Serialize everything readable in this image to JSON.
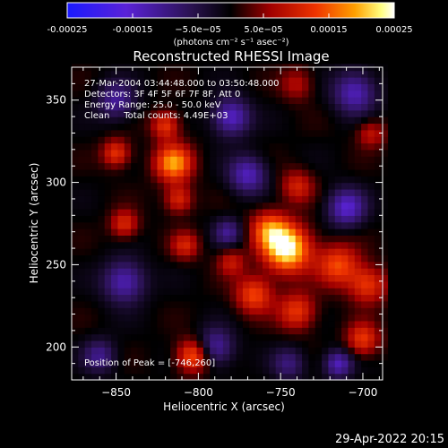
{
  "footer_date": "29-Apr-2022 20:15",
  "colors": {
    "background": "#000000",
    "foreground": "#ffffff",
    "colormap": "blue-purple-black-red-orange-yellow-white"
  },
  "chart_data": {
    "type": "heatmap",
    "title": "Reconstructed RHESSI Image",
    "xlabel": "Heliocentric X (arcsec)",
    "ylabel": "Heliocentric Y (arcsec)",
    "xlim": [
      -877,
      -688
    ],
    "ylim": [
      180,
      370
    ],
    "xticks": [
      -850,
      -800,
      -750,
      -700
    ],
    "yticks": [
      200,
      250,
      300,
      350
    ],
    "xtick_labels": [
      "−850",
      "−800",
      "−750",
      "−700"
    ],
    "ytick_labels": [
      "200",
      "250",
      "300",
      "350"
    ],
    "grid": false,
    "annotations": {
      "time_range": "27-Mar-2004 03:44:48.000 to 03:50:48.000",
      "detectors": "Detectors: 3F 4F 5F 6F 7F 8F, Att 0",
      "energy_range": "Energy Range: 25.0 - 50.0 keV",
      "clean_info": "Clean     Total counts: 4.49E+03",
      "peak_position": "Position of Peak = [-746,260]"
    },
    "peak": [
      -746,
      260
    ],
    "colorbar": {
      "range": [
        -0.00025,
        0.00025
      ],
      "ticks": [
        -0.00025,
        -0.00015,
        -5e-05,
        5e-05,
        0.00015,
        0.00025
      ],
      "tick_labels": [
        "-0.00025",
        "-0.00015",
        "−5.0e−05",
        "5.0e−05",
        "0.00015",
        "0.00025"
      ],
      "label": "(photons cm⁻² s⁻¹ asec⁻²)"
    },
    "sources": [
      {
        "x": -746,
        "y": 260,
        "sigma": 10,
        "amp": 1.0
      },
      {
        "x": -757,
        "y": 272,
        "sigma": 8,
        "amp": 0.55
      },
      {
        "x": -766,
        "y": 232,
        "sigma": 8,
        "amp": 0.55
      },
      {
        "x": -740,
        "y": 222,
        "sigma": 8,
        "amp": 0.5
      },
      {
        "x": -740,
        "y": 298,
        "sigma": 7,
        "amp": 0.4
      },
      {
        "x": -715,
        "y": 250,
        "sigma": 9,
        "amp": 0.55
      },
      {
        "x": -697,
        "y": 238,
        "sigma": 8,
        "amp": 0.5
      },
      {
        "x": -700,
        "y": 205,
        "sigma": 7,
        "amp": 0.5
      },
      {
        "x": -815,
        "y": 312,
        "sigma": 8,
        "amp": 0.75
      },
      {
        "x": -820,
        "y": 335,
        "sigma": 6,
        "amp": 0.5
      },
      {
        "x": -812,
        "y": 290,
        "sigma": 6,
        "amp": 0.45
      },
      {
        "x": -803,
        "y": 195,
        "sigma": 7,
        "amp": 0.65
      },
      {
        "x": -850,
        "y": 318,
        "sigma": 6,
        "amp": 0.5
      },
      {
        "x": -845,
        "y": 275,
        "sigma": 6,
        "amp": 0.45
      },
      {
        "x": -808,
        "y": 262,
        "sigma": 6,
        "amp": 0.4
      },
      {
        "x": -780,
        "y": 252,
        "sigma": 6,
        "amp": 0.35
      },
      {
        "x": -695,
        "y": 330,
        "sigma": 6,
        "amp": 0.35
      },
      {
        "x": -740,
        "y": 360,
        "sigma": 7,
        "amp": 0.3
      },
      {
        "x": -780,
        "y": 340,
        "sigma": 8,
        "amp": -0.6
      },
      {
        "x": -705,
        "y": 355,
        "sigma": 9,
        "amp": -0.55
      },
      {
        "x": -710,
        "y": 285,
        "sigma": 8,
        "amp": -0.6
      },
      {
        "x": -770,
        "y": 305,
        "sigma": 8,
        "amp": -0.55
      },
      {
        "x": -845,
        "y": 240,
        "sigma": 9,
        "amp": -0.55
      },
      {
        "x": -790,
        "y": 200,
        "sigma": 8,
        "amp": -0.5
      },
      {
        "x": -850,
        "y": 350,
        "sigma": 8,
        "amp": -0.45
      },
      {
        "x": -860,
        "y": 195,
        "sigma": 7,
        "amp": -0.4
      },
      {
        "x": -745,
        "y": 190,
        "sigma": 7,
        "amp": -0.35
      },
      {
        "x": -715,
        "y": 190,
        "sigma": 6,
        "amp": -0.55
      },
      {
        "x": -782,
        "y": 270,
        "sigma": 6,
        "amp": -0.4
      }
    ]
  }
}
